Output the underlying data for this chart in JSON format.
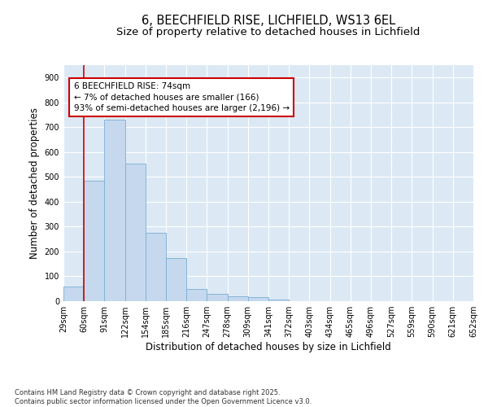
{
  "title1": "6, BEECHFIELD RISE, LICHFIELD, WS13 6EL",
  "title2": "Size of property relative to detached houses in Lichfield",
  "xlabel": "Distribution of detached houses by size in Lichfield",
  "ylabel": "Number of detached properties",
  "bar_values": [
    60,
    485,
    730,
    555,
    275,
    175,
    50,
    30,
    20,
    15,
    5,
    0,
    0,
    0,
    0,
    0,
    0,
    0,
    0,
    0
  ],
  "categories": [
    "29sqm",
    "60sqm",
    "91sqm",
    "122sqm",
    "154sqm",
    "185sqm",
    "216sqm",
    "247sqm",
    "278sqm",
    "309sqm",
    "341sqm",
    "372sqm",
    "403sqm",
    "434sqm",
    "465sqm",
    "496sqm",
    "527sqm",
    "559sqm",
    "590sqm",
    "621sqm",
    "652sqm"
  ],
  "bar_color": "#c5d8ee",
  "bar_edge_color": "#7aaed4",
  "vline_x": 1,
  "vline_color": "#cc0000",
  "annotation_box_text": "6 BEECHFIELD RISE: 74sqm\n← 7% of detached houses are smaller (166)\n93% of semi-detached houses are larger (2,196) →",
  "annotation_box_color": "#cc0000",
  "ylim": [
    0,
    950
  ],
  "yticks": [
    0,
    100,
    200,
    300,
    400,
    500,
    600,
    700,
    800,
    900
  ],
  "bg_color": "#dce9f5",
  "grid_color": "#ffffff",
  "footer_text": "Contains HM Land Registry data © Crown copyright and database right 2025.\nContains public sector information licensed under the Open Government Licence v3.0.",
  "title1_fontsize": 10.5,
  "title2_fontsize": 9.5,
  "tick_fontsize": 7.0,
  "ylabel_fontsize": 8.5,
  "xlabel_fontsize": 8.5,
  "footer_fontsize": 6.0
}
